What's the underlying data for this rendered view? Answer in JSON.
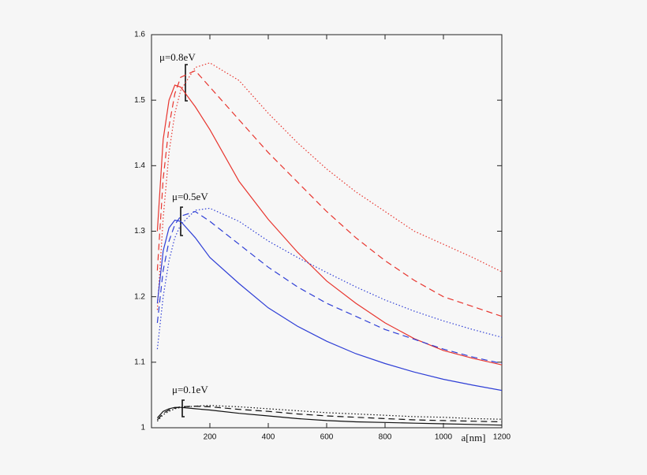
{
  "chart_data": {
    "type": "line",
    "x_label": "a[nm]",
    "annotations": [
      "μ=0.8eV",
      "μ=0.5eV",
      "μ=0.1eV"
    ],
    "x": [
      20,
      40,
      60,
      80,
      100,
      150,
      200,
      300,
      400,
      500,
      600,
      700,
      800,
      900,
      1000,
      1100,
      1200
    ],
    "series": [
      {
        "color": "#e8352e",
        "dash": "solid",
        "values": [
          1.3,
          1.44,
          1.5,
          1.523,
          1.52,
          1.49,
          1.455,
          1.376,
          1.318,
          1.268,
          1.224,
          1.19,
          1.16,
          1.136,
          1.118,
          1.106,
          1.096
        ]
      },
      {
        "color": "#e8352e",
        "dash": "dashed",
        "values": [
          1.24,
          1.38,
          1.46,
          1.51,
          1.535,
          1.545,
          1.52,
          1.47,
          1.42,
          1.375,
          1.33,
          1.29,
          1.255,
          1.225,
          1.2,
          1.185,
          1.17
        ]
      },
      {
        "color": "#e8352e",
        "dash": "dotted",
        "values": [
          1.18,
          1.32,
          1.42,
          1.48,
          1.515,
          1.55,
          1.557,
          1.53,
          1.48,
          1.435,
          1.395,
          1.36,
          1.33,
          1.3,
          1.28,
          1.26,
          1.238
        ]
      },
      {
        "color": "#2f3fd6",
        "dash": "solid",
        "values": [
          1.19,
          1.27,
          1.305,
          1.317,
          1.315,
          1.29,
          1.26,
          1.22,
          1.183,
          1.155,
          1.132,
          1.113,
          1.098,
          1.085,
          1.074,
          1.065,
          1.057
        ]
      },
      {
        "color": "#2f3fd6",
        "dash": "dashed",
        "values": [
          1.16,
          1.24,
          1.285,
          1.31,
          1.323,
          1.33,
          1.315,
          1.28,
          1.245,
          1.215,
          1.19,
          1.17,
          1.15,
          1.135,
          1.12,
          1.108,
          1.098
        ]
      },
      {
        "color": "#2f3fd6",
        "dash": "dotted",
        "values": [
          1.12,
          1.2,
          1.255,
          1.29,
          1.31,
          1.332,
          1.335,
          1.315,
          1.285,
          1.26,
          1.237,
          1.215,
          1.195,
          1.178,
          1.163,
          1.15,
          1.138
        ]
      },
      {
        "color": "#111111",
        "dash": "solid",
        "values": [
          1.015,
          1.025,
          1.029,
          1.031,
          1.031,
          1.029,
          1.027,
          1.022,
          1.018,
          1.014,
          1.011,
          1.009,
          1.008,
          1.007,
          1.006,
          1.005,
          1.004
        ]
      },
      {
        "color": "#111111",
        "dash": "dashed",
        "values": [
          1.012,
          1.022,
          1.027,
          1.03,
          1.032,
          1.033,
          1.032,
          1.028,
          1.025,
          1.021,
          1.018,
          1.016,
          1.014,
          1.012,
          1.011,
          1.01,
          1.009
        ]
      },
      {
        "color": "#111111",
        "dash": "dotted",
        "values": [
          1.01,
          1.02,
          1.025,
          1.029,
          1.031,
          1.033,
          1.034,
          1.032,
          1.029,
          1.026,
          1.023,
          1.021,
          1.019,
          1.017,
          1.016,
          1.014,
          1.013
        ]
      }
    ],
    "xlim": [
      0,
      1200
    ],
    "xticks": [
      200,
      400,
      600,
      800,
      1000,
      1200
    ],
    "ylim": [
      1,
      1.6
    ],
    "yticks": [
      1,
      1.1,
      1.2,
      1.3,
      1.4,
      1.5,
      1.6
    ]
  }
}
